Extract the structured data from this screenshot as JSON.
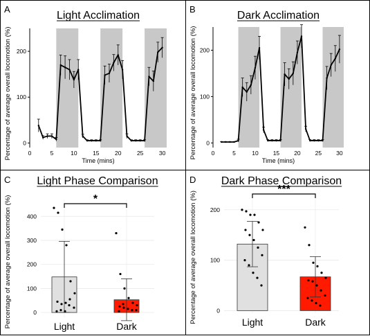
{
  "chart_data": [
    {
      "panel": "A",
      "type": "line",
      "title": "Light Acclimation",
      "xlabel": "Time (mins)",
      "ylabel": "Percentage of average overall locomotion (%)",
      "xlim": [
        0,
        31
      ],
      "ylim": [
        -10,
        250
      ],
      "xticks": [
        "0",
        "5",
        "10",
        "15",
        "20",
        "25",
        "30"
      ],
      "yticks": [
        "0",
        "100",
        "200"
      ],
      "shaded_intervals": [
        [
          6,
          11
        ],
        [
          16,
          21
        ],
        [
          26,
          31
        ]
      ],
      "x": [
        2,
        3,
        4,
        5,
        6,
        7,
        8,
        9,
        10,
        11,
        12,
        13,
        14,
        15,
        16,
        17,
        18,
        19,
        20,
        21,
        22,
        23,
        24,
        25,
        26,
        27,
        28,
        29,
        30
      ],
      "y": [
        38,
        12,
        15,
        15,
        8,
        170,
        165,
        160,
        138,
        160,
        15,
        5,
        5,
        5,
        5,
        148,
        152,
        175,
        192,
        160,
        15,
        5,
        5,
        5,
        5,
        145,
        135,
        198,
        208
      ],
      "err": [
        14,
        4,
        5,
        5,
        4,
        22,
        25,
        22,
        18,
        22,
        4,
        2,
        2,
        2,
        2,
        20,
        20,
        18,
        22,
        20,
        5,
        2,
        2,
        2,
        2,
        20,
        22,
        22,
        22
      ]
    },
    {
      "panel": "B",
      "type": "line",
      "title": "Dark Acclimation",
      "xlabel": "Time (mins)",
      "ylabel": "Percentage of average overall locomotion (%)",
      "xlim": [
        0,
        31
      ],
      "ylim": [
        -10,
        250
      ],
      "xticks": [
        "0",
        "5",
        "10",
        "15",
        "20",
        "25",
        "30"
      ],
      "yticks": [
        "0",
        "100",
        "200"
      ],
      "shaded_intervals": [
        [
          6,
          11
        ],
        [
          16,
          21
        ],
        [
          26,
          31
        ]
      ],
      "x": [
        2,
        3,
        4,
        5,
        6,
        7,
        8,
        9,
        10,
        11,
        12,
        13,
        14,
        15,
        16,
        17,
        18,
        19,
        20,
        21,
        22,
        23,
        24,
        25,
        26,
        27,
        28,
        29,
        30
      ],
      "y": [
        2,
        2,
        2,
        2,
        5,
        120,
        110,
        125,
        162,
        205,
        28,
        5,
        5,
        5,
        5,
        148,
        138,
        150,
        195,
        230,
        30,
        5,
        5,
        5,
        5,
        140,
        168,
        182,
        202
      ],
      "err": [
        1,
        1,
        1,
        1,
        3,
        20,
        20,
        20,
        25,
        25,
        6,
        2,
        2,
        2,
        2,
        25,
        22,
        25,
        25,
        25,
        6,
        2,
        2,
        2,
        2,
        25,
        25,
        28,
        30
      ]
    },
    {
      "panel": "C",
      "type": "bar",
      "title": "Light Phase Comparison",
      "ylabel": "Percentage of average overall locomotion (%)",
      "categories": [
        "Light",
        "Dark"
      ],
      "values": [
        148,
        53
      ],
      "err": [
        148,
        87
      ],
      "ylim": [
        -20,
        470
      ],
      "yticks": [
        "0",
        "100",
        "200",
        "300",
        "400"
      ],
      "bar_colors": [
        "#e0e0e0",
        "#ff1a00"
      ],
      "points": [
        [
          435,
          415,
          345,
          280,
          130,
          80,
          45,
          35,
          40,
          55,
          20,
          5,
          10,
          5,
          30
        ],
        [
          330,
          160,
          100,
          60,
          40,
          30,
          25,
          20,
          15,
          10,
          10,
          5,
          35
        ]
      ],
      "significance": "*"
    },
    {
      "panel": "D",
      "type": "bar",
      "title": "Dark Phase Comparison",
      "ylabel": "Percentage of average overall locomotion (%)",
      "categories": [
        "Light",
        "Dark"
      ],
      "values": [
        132,
        67
      ],
      "err": [
        45,
        40
      ],
      "ylim": [
        -5,
        230
      ],
      "yticks": [
        "0",
        "100",
        "200"
      ],
      "bar_colors": [
        "#e0e0e0",
        "#ff1a00"
      ],
      "points": [
        [
          200,
          197,
          190,
          190,
          175,
          160,
          160,
          150,
          140,
          125,
          110,
          100,
          90,
          75,
          65,
          50
        ],
        [
          165,
          130,
          95,
          88,
          75,
          65,
          60,
          58,
          50,
          40,
          30,
          25,
          20,
          15,
          10
        ]
      ],
      "significance": "***"
    }
  ]
}
